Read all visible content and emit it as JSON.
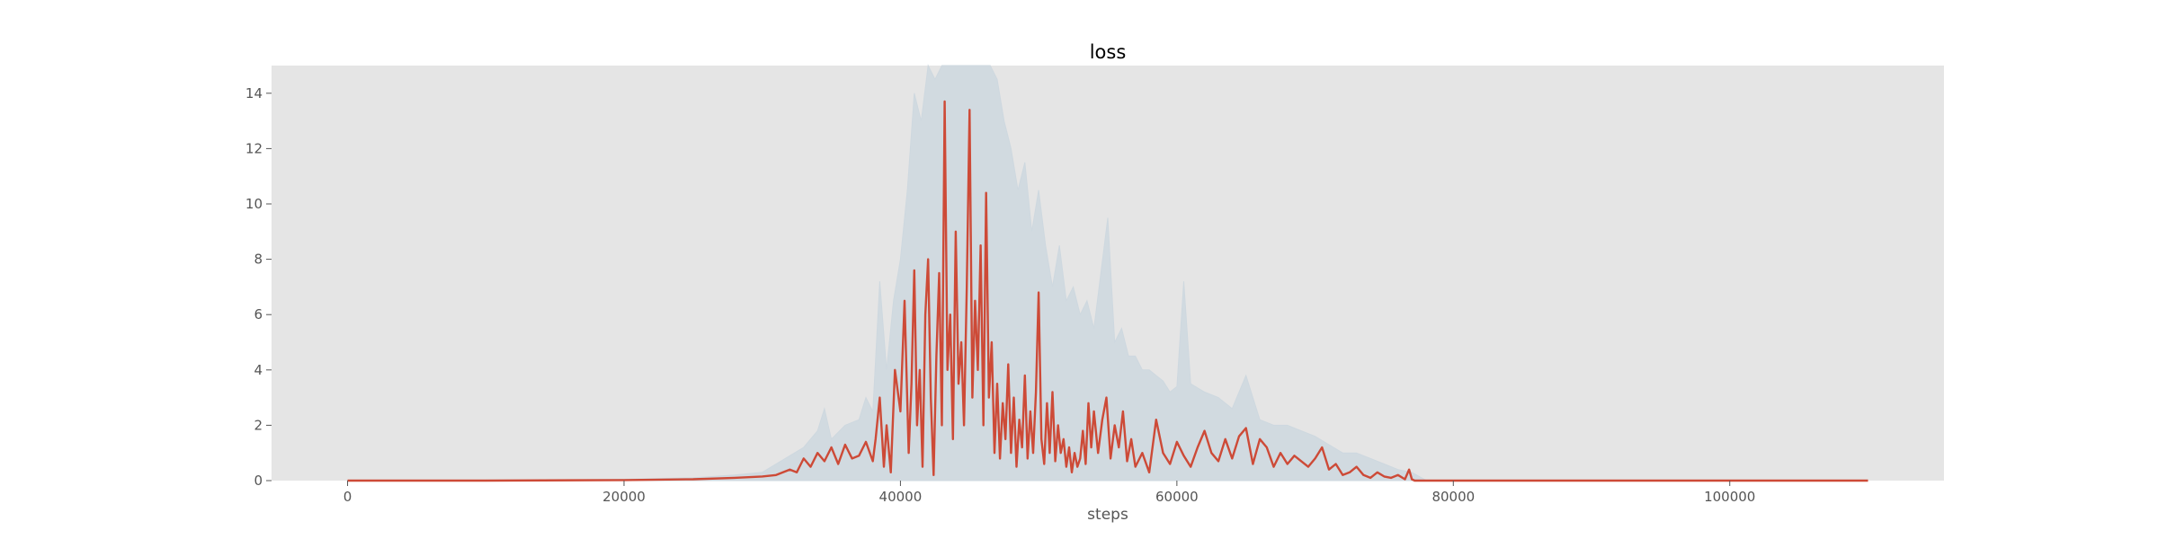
{
  "chart_data": {
    "type": "line",
    "title": "loss",
    "xlabel": "steps",
    "ylabel": "",
    "xlim": [
      -5500,
      115500
    ],
    "ylim": [
      0,
      15
    ],
    "xticks": [
      0,
      20000,
      40000,
      60000,
      80000,
      100000
    ],
    "yticks": [
      0,
      2,
      4,
      6,
      8,
      10,
      12,
      14
    ],
    "grid": false,
    "colors": {
      "background": "#e5e5e5",
      "smoothed": "#cd4a37",
      "raw": "#ced8df",
      "tick_text": "#555555"
    },
    "series": [
      {
        "role": "raw",
        "x": [
          0,
          10000,
          20000,
          25000,
          28000,
          30000,
          32000,
          33000,
          34000,
          34500,
          35000,
          36000,
          37000,
          37500,
          38000,
          38500,
          39000,
          39500,
          40000,
          40500,
          41000,
          41500,
          42000,
          42500,
          43000,
          43500,
          44000,
          44500,
          45000,
          45500,
          46000,
          46500,
          47000,
          47500,
          48000,
          48500,
          49000,
          49500,
          50000,
          50500,
          51000,
          51500,
          52000,
          52500,
          53000,
          53500,
          54000,
          54500,
          55000,
          55500,
          56000,
          56500,
          57000,
          57500,
          58000,
          58500,
          59000,
          59500,
          60000,
          60500,
          61000,
          62000,
          63000,
          64000,
          65000,
          66000,
          67000,
          68000,
          69000,
          70000,
          71000,
          72000,
          73000,
          74000,
          75000,
          76000,
          77000,
          78000,
          90000,
          110000
        ],
        "y": [
          0,
          0,
          0.05,
          0.1,
          0.2,
          0.3,
          0.9,
          1.2,
          1.8,
          2.6,
          1.5,
          2.0,
          2.2,
          3.0,
          2.5,
          7.2,
          4.0,
          6.5,
          8.0,
          10.5,
          14.0,
          13.0,
          15.0,
          14.5,
          15.0,
          15.0,
          15.0,
          15.0,
          15.0,
          15.0,
          15.0,
          15.0,
          14.5,
          13.0,
          12.0,
          10.5,
          11.5,
          9.0,
          10.5,
          8.5,
          7.0,
          8.5,
          6.5,
          7.0,
          6.0,
          6.5,
          5.5,
          7.5,
          9.5,
          5.0,
          5.5,
          4.5,
          4.5,
          4.0,
          4.0,
          3.8,
          3.6,
          3.2,
          3.4,
          7.2,
          3.5,
          3.2,
          3.0,
          2.6,
          3.8,
          2.2,
          2.0,
          2.0,
          1.8,
          1.6,
          1.3,
          1.0,
          1.0,
          0.8,
          0.6,
          0.4,
          0.3,
          0.02,
          0,
          0
        ]
      },
      {
        "role": "smoothed",
        "x": [
          0,
          10000,
          20000,
          25000,
          28000,
          30000,
          31000,
          32000,
          32500,
          33000,
          33500,
          34000,
          34500,
          35000,
          35500,
          36000,
          36500,
          37000,
          37500,
          38000,
          38200,
          38500,
          38800,
          39000,
          39300,
          39600,
          40000,
          40300,
          40600,
          40800,
          41000,
          41200,
          41400,
          41600,
          41800,
          42000,
          42200,
          42400,
          42600,
          42800,
          43000,
          43200,
          43400,
          43600,
          43800,
          44000,
          44200,
          44400,
          44600,
          44800,
          45000,
          45200,
          45400,
          45600,
          45800,
          46000,
          46200,
          46400,
          46600,
          46800,
          47000,
          47200,
          47400,
          47600,
          47800,
          48000,
          48200,
          48400,
          48600,
          48800,
          49000,
          49200,
          49400,
          49600,
          49800,
          50000,
          50200,
          50400,
          50600,
          50800,
          51000,
          51200,
          51400,
          51600,
          51800,
          52000,
          52200,
          52400,
          52600,
          52800,
          53000,
          53200,
          53400,
          53600,
          53800,
          54000,
          54300,
          54600,
          54900,
          55200,
          55500,
          55800,
          56100,
          56400,
          56700,
          57000,
          57500,
          58000,
          58500,
          59000,
          59500,
          60000,
          60500,
          61000,
          61500,
          62000,
          62500,
          63000,
          63500,
          64000,
          64500,
          65000,
          65500,
          66000,
          66500,
          67000,
          67500,
          68000,
          68500,
          69000,
          69500,
          70000,
          70500,
          71000,
          71500,
          72000,
          72500,
          73000,
          73500,
          74000,
          74500,
          75000,
          75500,
          76000,
          76500,
          76800,
          77000,
          77200,
          78000,
          90000,
          110000
        ],
        "y": [
          0,
          0,
          0.02,
          0.05,
          0.1,
          0.15,
          0.2,
          0.4,
          0.3,
          0.8,
          0.5,
          1.0,
          0.7,
          1.2,
          0.6,
          1.3,
          0.8,
          0.9,
          1.4,
          0.7,
          1.5,
          3.0,
          0.5,
          2.0,
          0.3,
          4.0,
          2.5,
          6.5,
          1.0,
          3.5,
          7.6,
          2.0,
          4.0,
          0.5,
          6.0,
          8.0,
          3.0,
          0.2,
          4.5,
          7.5,
          2.0,
          13.7,
          4.0,
          6.0,
          1.5,
          9.0,
          3.5,
          5.0,
          2.0,
          7.0,
          13.4,
          3.0,
          6.5,
          4.0,
          8.5,
          2.0,
          10.4,
          3.0,
          5.0,
          1.0,
          3.5,
          0.8,
          2.8,
          1.5,
          4.2,
          1.0,
          3.0,
          0.5,
          2.2,
          1.2,
          3.8,
          0.8,
          2.5,
          1.0,
          3.2,
          6.8,
          1.5,
          0.6,
          2.8,
          1.0,
          3.2,
          0.7,
          2.0,
          1.0,
          1.5,
          0.5,
          1.2,
          0.3,
          1.0,
          0.5,
          0.8,
          1.8,
          0.6,
          2.8,
          1.2,
          2.5,
          1.0,
          2.2,
          3.0,
          0.8,
          2.0,
          1.2,
          2.5,
          0.7,
          1.5,
          0.5,
          1.0,
          0.3,
          2.2,
          1.0,
          0.6,
          1.4,
          0.9,
          0.5,
          1.2,
          1.8,
          1.0,
          0.7,
          1.5,
          0.8,
          1.6,
          1.9,
          0.6,
          1.5,
          1.2,
          0.5,
          1.0,
          0.6,
          0.9,
          0.7,
          0.5,
          0.8,
          1.2,
          0.4,
          0.6,
          0.2,
          0.3,
          0.5,
          0.2,
          0.1,
          0.3,
          0.15,
          0.1,
          0.2,
          0.05,
          0.4,
          0.05,
          0,
          0,
          0,
          0
        ]
      }
    ]
  }
}
